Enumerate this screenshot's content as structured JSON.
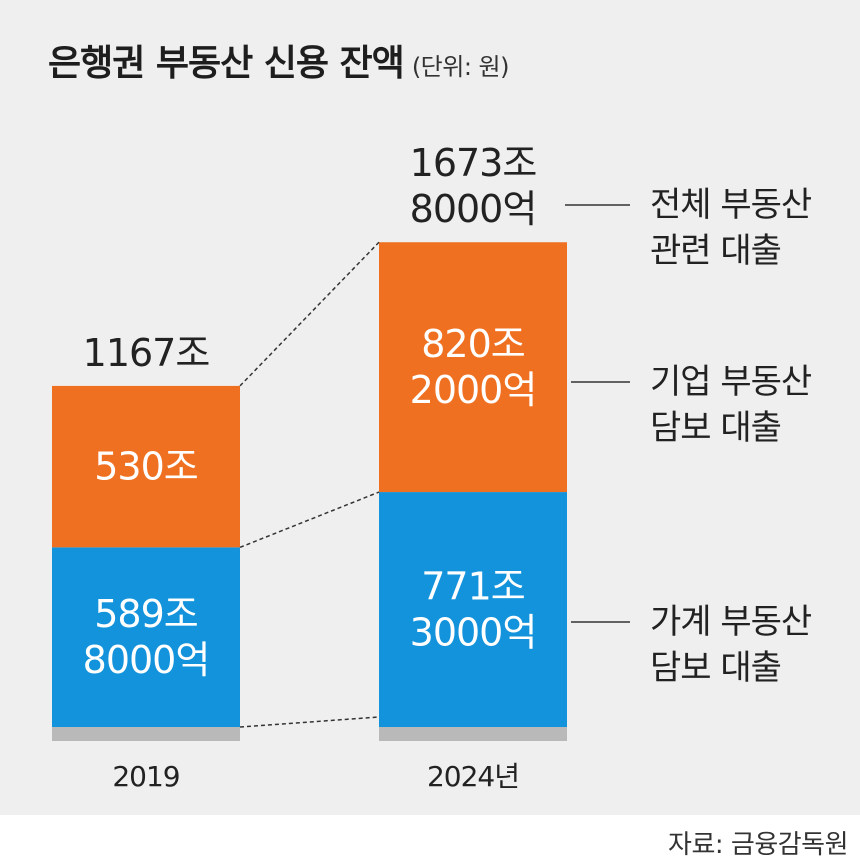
{
  "title": "은행권 부동산 신용 잔액",
  "unit": "(단위: 원)",
  "source": "자료: 금융감독원",
  "colors": {
    "corporate": "#f07022",
    "household": "#1293dc",
    "base": "#b9b9b9",
    "background": "#efefef",
    "text": "#222222"
  },
  "chart_data": {
    "type": "bar",
    "stacked": true,
    "categories": [
      "2019",
      "2024년"
    ],
    "series": [
      {
        "name": "가계 부동산 담보 대출",
        "values": [
          589.8,
          771.3
        ],
        "labels": [
          [
            "589조",
            "8000억"
          ],
          [
            "771조",
            "3000억"
          ]
        ],
        "color": "#1293dc"
      },
      {
        "name": "기업 부동산 담보 대출",
        "values": [
          530,
          820.2
        ],
        "labels": [
          [
            "530조"
          ],
          [
            "820조",
            "2000억"
          ]
        ],
        "color": "#f07022"
      }
    ],
    "totals": {
      "values": [
        1167,
        1673.8
      ],
      "labels": [
        [
          "1167조"
        ],
        [
          "1673조",
          "8000억"
        ]
      ]
    },
    "total_series_name": [
      "전체 부동산",
      "관련 대출"
    ],
    "legend_labels": [
      [
        "가계 부동산",
        "담보 대출"
      ],
      [
        "기업 부동산",
        "담보 대출"
      ]
    ],
    "ylim": [
      0,
      1800
    ],
    "grid": false,
    "legend": "right"
  }
}
